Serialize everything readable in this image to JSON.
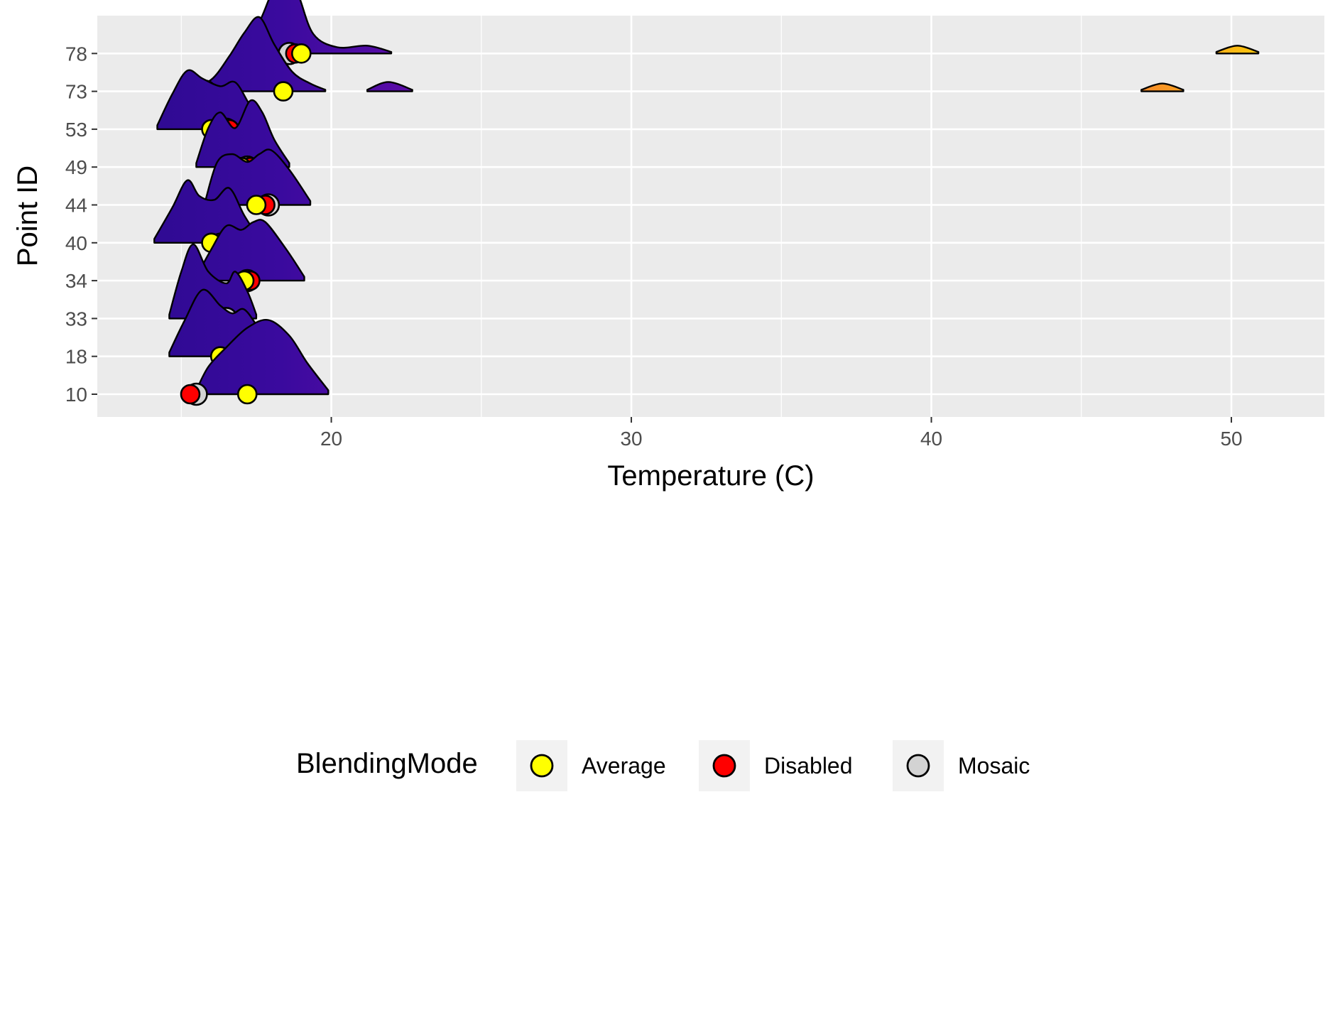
{
  "chart_data": {
    "type": "ridgeline",
    "xlabel": "Temperature (C)",
    "ylabel": "Point ID",
    "xlim": [
      12.2,
      53.1
    ],
    "x_ticks": [
      20,
      30,
      40,
      50
    ],
    "x_minor_ticks": [
      15,
      25,
      35,
      45
    ],
    "grid": true,
    "legend": {
      "title": "BlendingMode",
      "position": "bottom",
      "entries": [
        {
          "name": "Average",
          "color": "#FFFF00"
        },
        {
          "name": "Disabled",
          "color": "#FF0000"
        },
        {
          "name": "Mosaic",
          "color": "#D3D3D3"
        }
      ]
    },
    "colors": {
      "panel_background": "#EBEBEB",
      "grid": "#FFFFFF",
      "density_low": "#2A0A8E",
      "density_high": "#FFE000"
    },
    "point_ids": [
      "10",
      "18",
      "33",
      "34",
      "40",
      "44",
      "49",
      "53",
      "73",
      "78"
    ],
    "ridges": [
      {
        "id": "10",
        "x": [
          15.5,
          15.9,
          16.5,
          17.2,
          17.9,
          18.6,
          19.2,
          19.9
        ],
        "density": [
          0.05,
          0.35,
          0.6,
          0.85,
          0.95,
          0.75,
          0.4,
          0.05
        ]
      },
      {
        "id": "18",
        "x": [
          14.6,
          15.1,
          15.7,
          16.3,
          16.7,
          17.1,
          17.6,
          18.2
        ],
        "density": [
          0.05,
          0.45,
          0.85,
          0.65,
          0.55,
          0.6,
          0.35,
          0.05
        ]
      },
      {
        "id": "33",
        "x": [
          14.6,
          15.0,
          15.4,
          15.9,
          16.5,
          16.8,
          17.2,
          17.5
        ],
        "density": [
          0.05,
          0.6,
          0.95,
          0.6,
          0.45,
          0.6,
          0.35,
          0.05
        ]
      },
      {
        "id": "34",
        "x": [
          15.5,
          16.0,
          16.5,
          17.0,
          17.4,
          17.8,
          18.5,
          19.1
        ],
        "density": [
          0.05,
          0.4,
          0.7,
          0.65,
          0.75,
          0.75,
          0.4,
          0.05
        ]
      },
      {
        "id": "40",
        "x": [
          14.1,
          14.7,
          15.2,
          15.6,
          16.1,
          16.6,
          17.1,
          17.6
        ],
        "density": [
          0.05,
          0.45,
          0.8,
          0.6,
          0.55,
          0.7,
          0.35,
          0.05
        ]
      },
      {
        "id": "44",
        "x": [
          15.8,
          16.2,
          16.7,
          17.2,
          17.6,
          18.0,
          18.6,
          19.3
        ],
        "density": [
          0.05,
          0.55,
          0.65,
          0.55,
          0.65,
          0.7,
          0.45,
          0.05
        ]
      },
      {
        "id": "49",
        "x": [
          15.5,
          15.9,
          16.3,
          16.8,
          17.3,
          17.7,
          18.1,
          18.6
        ],
        "density": [
          0.05,
          0.5,
          0.7,
          0.5,
          0.85,
          0.7,
          0.35,
          0.05
        ]
      },
      {
        "id": "53",
        "x": [
          14.2,
          14.7,
          15.2,
          15.7,
          16.3,
          16.8,
          17.3,
          17.8
        ],
        "density": [
          0.05,
          0.45,
          0.75,
          0.65,
          0.55,
          0.6,
          0.3,
          0.05
        ]
      },
      {
        "id": "73",
        "x": [
          15.3,
          16.0,
          16.6,
          17.1,
          17.6,
          18.1,
          18.7,
          19.3,
          19.8,
          21.2,
          21.9,
          22.7,
          47.0,
          47.7,
          48.4
        ],
        "density": [
          0.05,
          0.15,
          0.45,
          0.75,
          0.95,
          0.6,
          0.25,
          0.1,
          0.02,
          0.02,
          0.12,
          0.02,
          0.02,
          0.1,
          0.02
        ]
      },
      {
        "id": "78",
        "x": [
          17.0,
          17.6,
          18.1,
          18.5,
          18.9,
          19.4,
          20.2,
          21.2,
          22.0,
          49.5,
          50.2,
          50.9
        ],
        "density": [
          0.05,
          0.4,
          0.85,
          1.0,
          0.75,
          0.25,
          0.08,
          0.1,
          0.02,
          0.02,
          0.1,
          0.02
        ]
      }
    ],
    "points": [
      {
        "id": "10",
        "Average": 17.2,
        "Disabled": 15.3,
        "Mosaic": 15.5
      },
      {
        "id": "18",
        "Average": 16.3,
        "Disabled": 16.9,
        "Mosaic": 16.7
      },
      {
        "id": "33",
        "Average": 15.9,
        "Disabled": 16.3,
        "Mosaic": 16.5
      },
      {
        "id": "34",
        "Average": 17.1,
        "Disabled": 17.3,
        "Mosaic": 17.2
      },
      {
        "id": "40",
        "Average": 16.0,
        "Disabled": 16.3,
        "Mosaic": 16.5
      },
      {
        "id": "44",
        "Average": 17.5,
        "Disabled": 17.8,
        "Mosaic": 17.9
      },
      {
        "id": "49",
        "Average": 17.0,
        "Disabled": 17.3,
        "Mosaic": 17.2
      },
      {
        "id": "53",
        "Average": 16.0,
        "Disabled": 16.6,
        "Mosaic": 16.5
      },
      {
        "id": "73",
        "Average": 18.4,
        "Disabled": 15.3,
        "Mosaic": 15.8
      },
      {
        "id": "78",
        "Average": 19.0,
        "Disabled": 18.8,
        "Mosaic": 18.6
      }
    ]
  }
}
